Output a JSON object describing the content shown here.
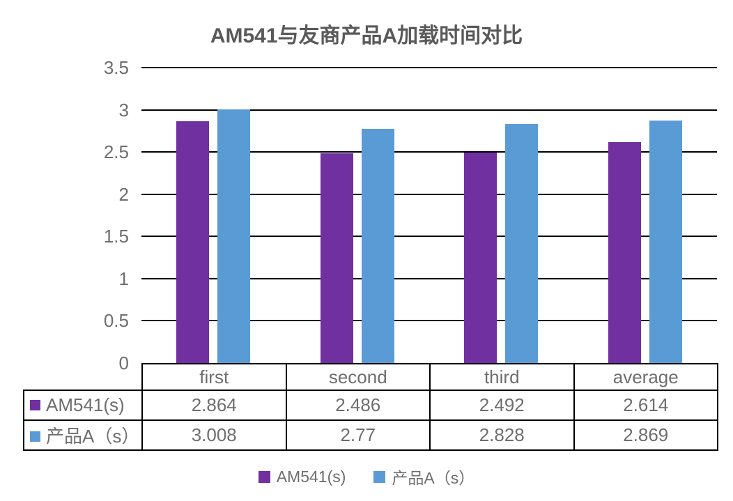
{
  "chart_data": {
    "type": "bar",
    "title": "AM541与友商产品A加载时间对比",
    "categories": [
      "first",
      "second",
      "third",
      "average"
    ],
    "series": [
      {
        "name": "AM541(s)",
        "color": "#7030A0",
        "values": [
          2.864,
          2.486,
          2.492,
          2.614
        ]
      },
      {
        "name": "产品A（s）",
        "color": "#5B9BD5",
        "values": [
          3.008,
          2.77,
          2.828,
          2.869
        ]
      }
    ],
    "xlabel": "",
    "ylabel": "",
    "ylim": [
      0,
      3.5
    ],
    "ytick_step": 0.5,
    "ytick_labels": [
      "3.5",
      "3",
      "2.5",
      "2",
      "1.5",
      "1",
      "0.5",
      "0"
    ],
    "grid": true,
    "legend_position": "bottom",
    "show_data_table": true,
    "colors": {
      "title_text": "#595959",
      "axis_text": "#6e6e6e",
      "line": "#000000",
      "background": "#ffffff"
    }
  }
}
